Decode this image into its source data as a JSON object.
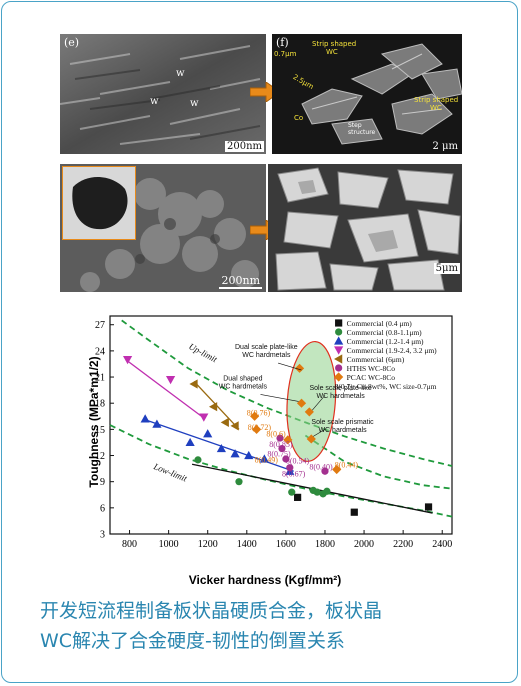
{
  "figure": {
    "panels": [
      {
        "id": "e",
        "label": "(e)",
        "scale": "200nm",
        "arrows": [
          "w",
          "w",
          "w"
        ]
      },
      {
        "id": "f",
        "label": "(f)",
        "scale": "2 μm",
        "annotations": [
          "Strip shaped",
          "WC",
          "0.7μm",
          "2.5μm",
          "Co",
          "Strip shaped",
          "WC",
          "Step",
          "structure"
        ]
      },
      {
        "id": "g",
        "label": "",
        "scale": "200nm",
        "inset_scale": "200nm"
      },
      {
        "id": "h",
        "label": "",
        "scale": "5μm"
      }
    ]
  },
  "chart_data": {
    "type": "scatter",
    "xlabel": "Vicker hardness (Kgf/mm²)",
    "ylabel": "Toughness (MPa*m1/2)",
    "xlim": [
      700,
      2450
    ],
    "ylim": [
      3,
      28
    ],
    "xticks": [
      800,
      1000,
      1200,
      1400,
      1600,
      1800,
      2000,
      2200,
      2400
    ],
    "yticks": [
      3,
      6,
      9,
      12,
      15,
      18,
      21,
      24,
      27
    ],
    "legend_position": "top-right",
    "series": [
      {
        "name": "Commercial (0.4 μm)",
        "marker": "square",
        "color": "#111111",
        "points": [
          [
            1660,
            7.2
          ],
          [
            1950,
            5.5
          ],
          [
            2330,
            6.1
          ]
        ]
      },
      {
        "name": "Commercial (0.8-1.1μm)",
        "marker": "circle",
        "color": "#2e8b3d",
        "points": [
          [
            1150,
            11.5
          ],
          [
            1360,
            9.0
          ],
          [
            1630,
            7.8
          ],
          [
            1740,
            8.0
          ],
          [
            1760,
            7.8
          ],
          [
            1790,
            7.6
          ],
          [
            1810,
            7.9
          ]
        ]
      },
      {
        "name": "Commercial (1.2-1.4 μm)",
        "marker": "triangle-up",
        "color": "#1f3fbf",
        "points": [
          [
            880,
            16.2
          ],
          [
            940,
            15.6
          ],
          [
            1110,
            13.5
          ],
          [
            1200,
            14.5
          ],
          [
            1270,
            12.8
          ],
          [
            1340,
            12.2
          ],
          [
            1410,
            12.0
          ],
          [
            1490,
            11.6
          ],
          [
            1620,
            10.2
          ]
        ]
      },
      {
        "name": "Commercial (1.9-2.4, 3.2 μm)",
        "marker": "triangle-down",
        "color": "#c02fb0",
        "points": [
          [
            790,
            23.0
          ],
          [
            1010,
            20.7
          ],
          [
            1180,
            16.4
          ]
        ]
      },
      {
        "name": "Commercial (6μm)",
        "marker": "triangle-left",
        "color": "#9a6a10",
        "points": [
          [
            1130,
            20.2
          ],
          [
            1230,
            17.6
          ],
          [
            1290,
            15.8
          ],
          [
            1340,
            15.4
          ]
        ]
      },
      {
        "name": "HTHS WC-8Co",
        "marker": "circle",
        "color": "#a3308f",
        "points": [
          [
            1570,
            14.0
          ],
          [
            1580,
            12.8
          ],
          [
            1600,
            11.6
          ],
          [
            1620,
            10.6
          ],
          [
            1800,
            10.2
          ]
        ]
      },
      {
        "name": "PCAC WC-8Co",
        "marker": "diamond",
        "color": "#e07a10",
        "points": [
          [
            1440,
            16.5
          ],
          [
            1450,
            15.0
          ],
          [
            1610,
            13.8
          ],
          [
            1670,
            22.0
          ],
          [
            1680,
            18.0
          ],
          [
            1720,
            17.0
          ],
          [
            1730,
            13.9
          ],
          [
            1860,
            10.4
          ]
        ]
      }
    ],
    "point_labels": [
      "8(0.76)",
      "8(0.72)",
      "8(0.6)",
      "8(0.85)",
      "8(0.75)",
      "8(0.49)",
      "8(0.54)",
      "8(0.67)",
      "8(0.40)",
      "8(0.44)"
    ],
    "legend_note": "8(0.7): Co-8wt%, WC size-0.7μm",
    "annotations": [
      "Up-limit",
      "Low-limit",
      "Dual scale plate-like WC hardmetals",
      "Dual shaped WC hardmetals",
      "Sole scale plate-like WC hardmetals",
      "Sole scale prismatic WC hardmetals"
    ]
  },
  "caption": {
    "line1": "开发短流程制备板状晶硬质合金，板状晶",
    "line2": "WC解决了合金硬度-韧性的倒置关系"
  },
  "colors": {
    "border": "#4aa3c7",
    "caption": "#2a86b0",
    "arrow": "#e88a1a",
    "ellipse": "#8fd18a",
    "ellipse_stroke": "#e0301e",
    "limit_curve": "#1f9a3c"
  }
}
